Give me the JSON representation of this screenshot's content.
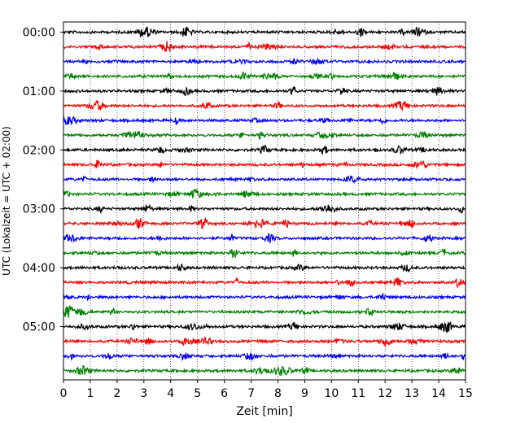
{
  "chart_data": {
    "type": "line",
    "xlabel": "Zeit  [min]",
    "ylabel": "UTC (Lokalzeit = UTC + 02:00)",
    "xlim": [
      0,
      15
    ],
    "x_ticks": [
      0,
      1,
      2,
      3,
      4,
      5,
      6,
      7,
      8,
      9,
      10,
      11,
      12,
      13,
      14,
      15
    ],
    "x_tick_labels": [
      "0",
      "1",
      "2",
      "3",
      "4",
      "5",
      "6",
      "7",
      "8",
      "9",
      "10",
      "11",
      "12",
      "13",
      "14",
      "15"
    ],
    "y_tick_labels": [
      "00:00",
      "01:00",
      "02:00",
      "03:00",
      "04:00",
      "05:00"
    ],
    "grid": {
      "vertical": true,
      "style": "dotted"
    },
    "trace_colors": [
      "#000000",
      "#ff0000",
      "#0000ff",
      "#008000"
    ],
    "trace_count": 24,
    "trace_interval_min": 15
  }
}
